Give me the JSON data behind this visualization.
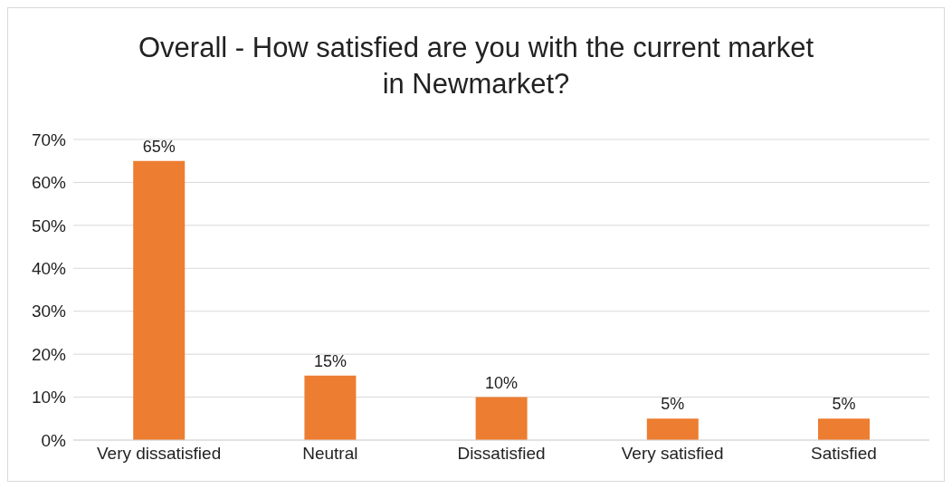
{
  "chart_data": {
    "type": "bar",
    "title": "Overall - How satisfied are you with the current market in Newmarket?",
    "categories": [
      "Very dissatisfied",
      "Neutral",
      "Dissatisfied",
      "Very satisfied",
      "Satisfied"
    ],
    "values": [
      65,
      15,
      10,
      5,
      5
    ],
    "value_labels": [
      "65%",
      "15%",
      "10%",
      "5%",
      "5%"
    ],
    "color": "#ed7d31",
    "ylim": [
      0,
      70
    ],
    "yticks": [
      {
        "value": 0,
        "label": "0%"
      },
      {
        "value": 10,
        "label": "10%"
      },
      {
        "value": 20,
        "label": "20%"
      },
      {
        "value": 30,
        "label": "30%"
      },
      {
        "value": 40,
        "label": "40%"
      },
      {
        "value": 50,
        "label": "50%"
      },
      {
        "value": 60,
        "label": "60%"
      },
      {
        "value": 70,
        "label": "70%"
      }
    ],
    "grid": "y"
  }
}
